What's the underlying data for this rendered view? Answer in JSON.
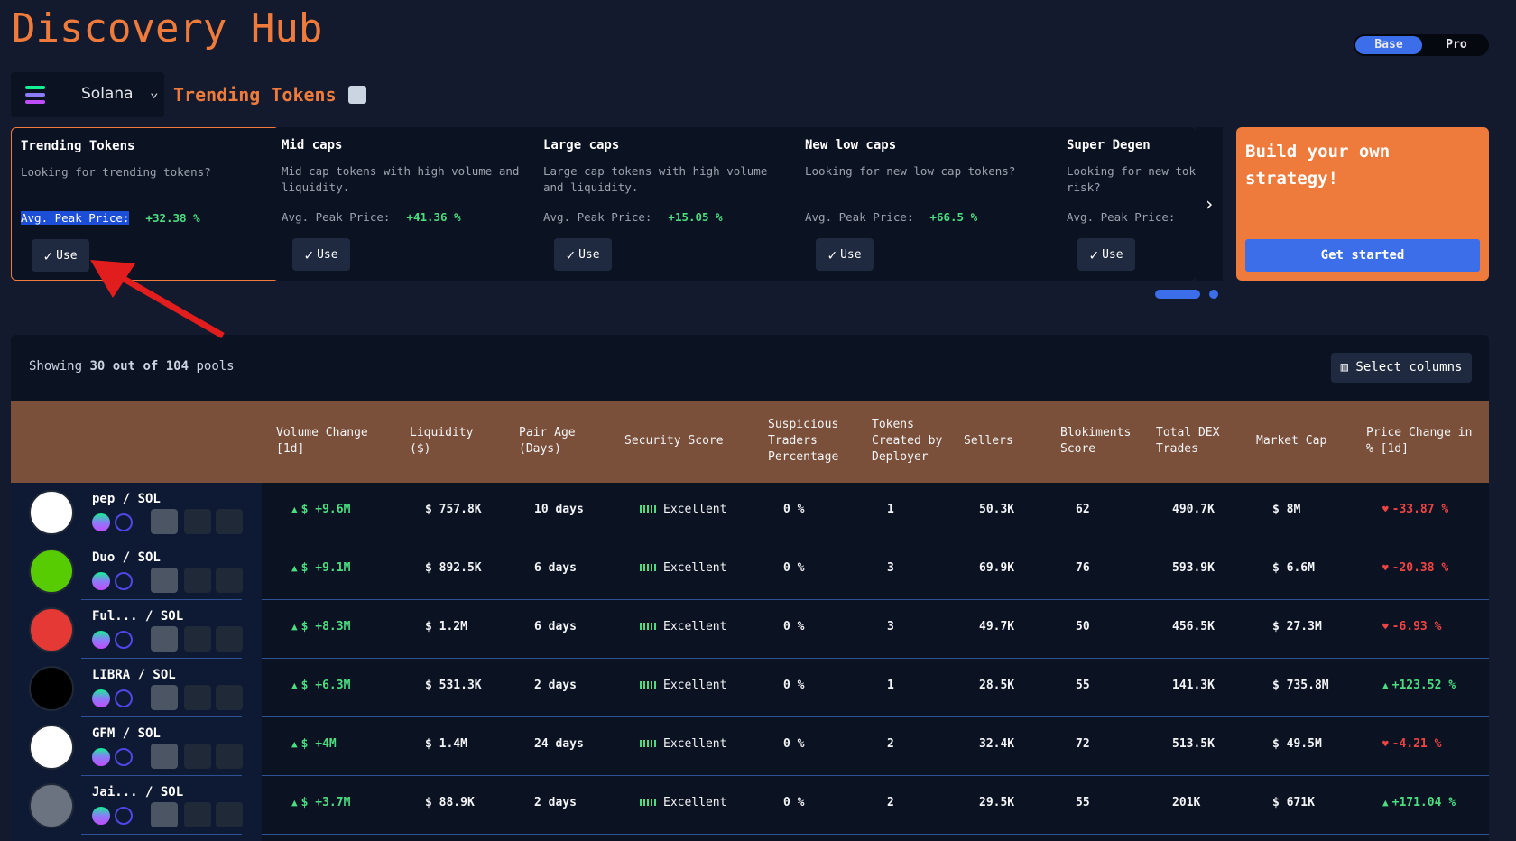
{
  "header": {
    "title": "Discovery Hub",
    "toggle": [
      "Base",
      "Pro"
    ]
  },
  "chain": "Solana",
  "section_title": "Trending Tokens",
  "strategies": [
    {
      "title": "Trending Tokens",
      "description": "Looking for trending tokens?",
      "stat_label": "Avg. Peak Price:",
      "stat_value": "+32.38 %",
      "button": "Use"
    },
    {
      "title": "Mid caps",
      "description": "Mid cap tokens with high volume and liquidity.",
      "stat_label": "Avg. Peak Price:",
      "stat_value": "+41.36 %",
      "button": "Use"
    },
    {
      "title": "Large caps",
      "description": "Large cap tokens with high volume and liquidity.",
      "stat_label": "Avg. Peak Price:",
      "stat_value": "+15.05 %",
      "button": "Use"
    },
    {
      "title": "New low caps",
      "description": "Looking for new low cap tokens?",
      "stat_label": "Avg. Peak Price:",
      "stat_value": "+66.5 %",
      "button": "Use"
    },
    {
      "title": "Super Degen",
      "description": "Looking for new tokens with high risk?",
      "stat_label": "Avg. Peak Price:",
      "button": "Use"
    }
  ],
  "cta": {
    "title": "Build your own strategy!",
    "button": "Get started"
  },
  "table": {
    "summary": [
      "Showing",
      "30 out of 104",
      "pools"
    ],
    "select_columns": "Select columns",
    "columns": [
      "Volume Change [1d]",
      "Liquidity ($)",
      "Pair Age (Days)",
      "Security Score",
      "Suspicious Traders Percentage",
      "Tokens Created by Deployer",
      "Sellers",
      "Blokiments Score",
      "Total DEX Trades",
      "Market Cap",
      "Price Change in % [1d]"
    ],
    "rows": [
      {
        "pair": "pep / SOL",
        "cells": [
          "$ +9.6M",
          "$ 757.8K",
          "10 days",
          "Excellent",
          "0 %",
          "1",
          "50.3K",
          "62",
          "490.7K",
          "$ 8M",
          "-33.87 %"
        ]
      },
      {
        "pair": "Duo / SOL",
        "cells": [
          "$ +9.1M",
          "$ 892.5K",
          "6 days",
          "Excellent",
          "0 %",
          "3",
          "69.9K",
          "76",
          "593.9K",
          "$ 6.6M",
          "-20.38 %"
        ]
      },
      {
        "pair": "Ful... / SOL",
        "cells": [
          "$ +8.3M",
          "$ 1.2M",
          "6 days",
          "Excellent",
          "0 %",
          "3",
          "49.7K",
          "50",
          "456.5K",
          "$ 27.3M",
          "-6.93 %"
        ]
      },
      {
        "pair": "LIBRA / SOL",
        "cells": [
          "$ +6.3M",
          "$ 531.3K",
          "2 days",
          "Excellent",
          "0 %",
          "1",
          "28.5K",
          "55",
          "141.3K",
          "$ 735.8M",
          "+123.52 %"
        ]
      },
      {
        "pair": "GFM / SOL",
        "cells": [
          "$ +4M",
          "$ 1.4M",
          "24 days",
          "Excellent",
          "0 %",
          "2",
          "32.4K",
          "72",
          "513.5K",
          "$ 49.5M",
          "-4.21 %"
        ]
      },
      {
        "pair": "Jai... / SOL",
        "cells": [
          "$ +3.7M",
          "$ 88.9K",
          "2 days",
          "Excellent",
          "0 %",
          "2",
          "29.5K",
          "55",
          "201K",
          "$ 671K",
          "+171.04 %"
        ]
      }
    ]
  }
}
